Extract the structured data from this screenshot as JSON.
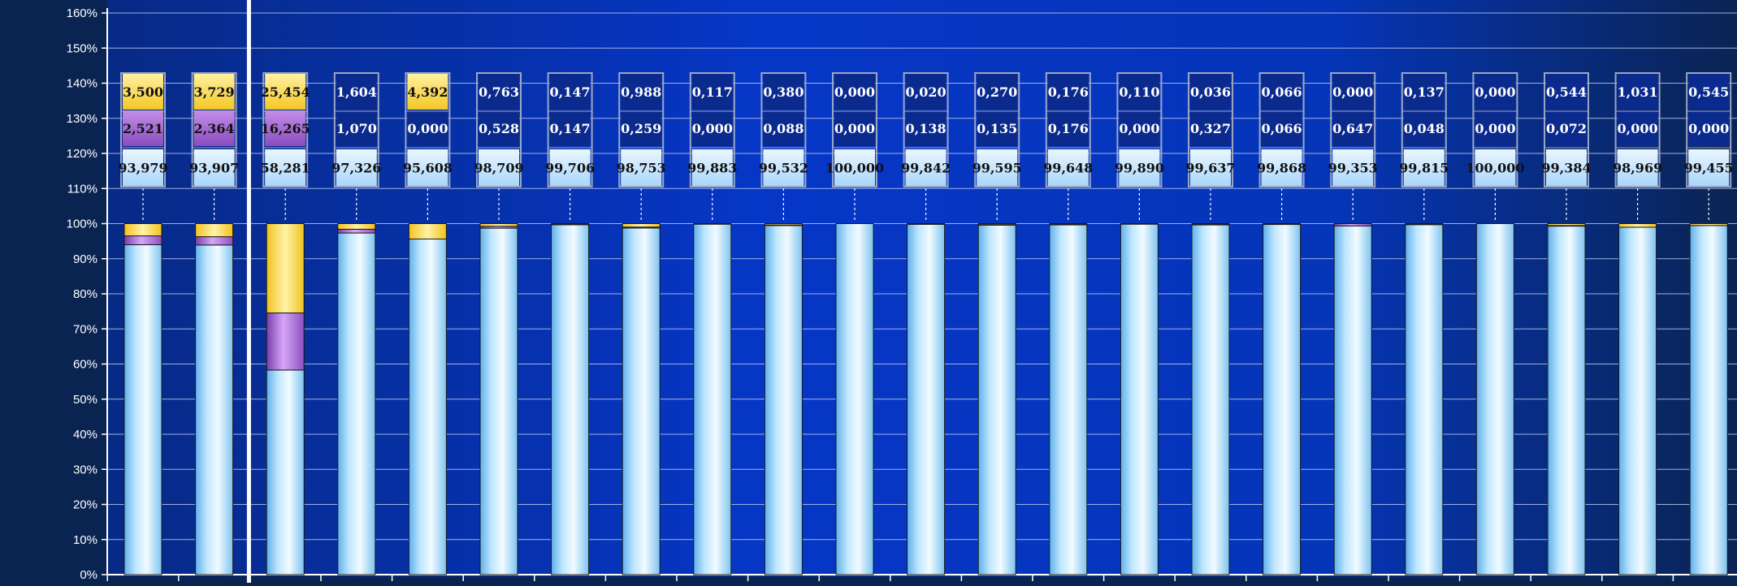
{
  "chart_data": {
    "type": "bar",
    "stacked": true,
    "y_axis": {
      "min": 0,
      "max": 160,
      "step": 10,
      "tick_labels": [
        "0%",
        "10%",
        "20%",
        "30%",
        "40%",
        "50%",
        "60%",
        "70%",
        "80%",
        "90%",
        "100%",
        "110%",
        "120%",
        "130%",
        "140%",
        "150%",
        "160%"
      ]
    },
    "grid": true,
    "legend": "none",
    "colors": {
      "background_dark": "#0a2452",
      "background_blue": "#0533c4",
      "light_blue": "#bfe6ff",
      "purple": "#b07ad8",
      "yellow": "#ffe45c",
      "grid": "#b9c9f0"
    },
    "series": [
      {
        "key": "light_blue",
        "values": [
          93.979,
          93.907,
          58.281,
          97.326,
          95.608,
          98.709,
          99.706,
          98.753,
          99.883,
          99.532,
          100.0,
          99.842,
          99.595,
          99.648,
          99.89,
          99.637,
          99.868,
          99.353,
          99.815,
          100.0,
          99.384,
          98.969,
          99.455
        ]
      },
      {
        "key": "purple",
        "values": [
          2.521,
          2.364,
          16.265,
          1.07,
          0.0,
          0.528,
          0.147,
          0.259,
          0.0,
          0.088,
          0.0,
          0.138,
          0.135,
          0.176,
          0.0,
          0.327,
          0.066,
          0.647,
          0.048,
          0.0,
          0.072,
          0.0,
          0.0
        ]
      },
      {
        "key": "yellow",
        "values": [
          3.5,
          3.729,
          25.454,
          1.604,
          4.392,
          0.763,
          0.147,
          0.988,
          0.117,
          0.38,
          0.0,
          0.02,
          0.27,
          0.176,
          0.11,
          0.036,
          0.066,
          0.0,
          0.137,
          0.0,
          0.544,
          1.031,
          0.545
        ]
      }
    ],
    "data_labels": {
      "light_blue": [
        "93,979",
        "93,907",
        "58,281",
        "97,326",
        "95,608",
        "98,709",
        "99,706",
        "98,753",
        "99,883",
        "99,532",
        "100,000",
        "99,842",
        "99,595",
        "99,648",
        "99,890",
        "99,637",
        "99,868",
        "99,353",
        "99,815",
        "100,000",
        "99,384",
        "98,969",
        "99,455"
      ],
      "purple": [
        "2,521",
        "2,364",
        "16,265",
        "1,070",
        "0,000",
        "0,528",
        "0,147",
        "0,259",
        "0,000",
        "0,088",
        "0,000",
        "0,138",
        "0,135",
        "0,176",
        "0,000",
        "0,327",
        "0,066",
        "0,647",
        "0,048",
        "0,000",
        "0,072",
        "0,000",
        "0,000"
      ],
      "yellow": [
        "3,500",
        "3,729",
        "25,454",
        "1,604",
        "4,392",
        "0,763",
        "0,147",
        "0,988",
        "0,117",
        "0,380",
        "0,000",
        "0,020",
        "0,270",
        "0,176",
        "0,110",
        "0,036",
        "0,066",
        "0,000",
        "0,137",
        "0,000",
        "0,544",
        "1,031",
        "0,545"
      ]
    },
    "separator_after_bar": 2
  }
}
